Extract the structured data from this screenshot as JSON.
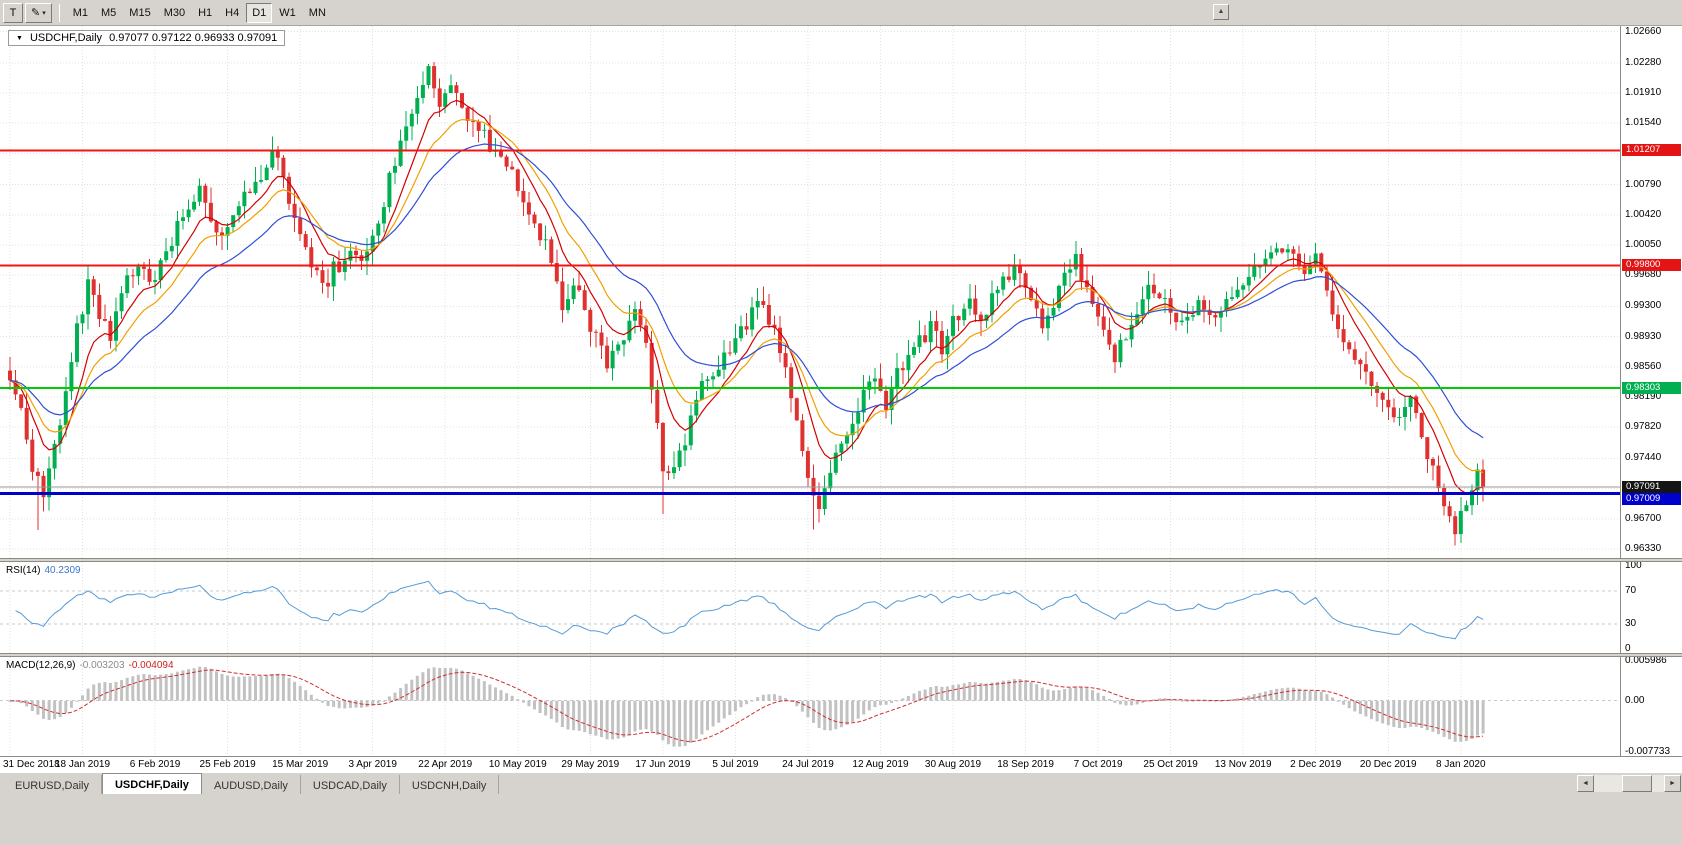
{
  "icons": {
    "collapse": "▼",
    "pencil": "✎",
    "caret_down": "▾",
    "scroll_up": "▲",
    "scroll_left": "◄",
    "scroll_right": "►"
  },
  "colors": {
    "window_bg": "#d6d3ce",
    "chart_bg": "#ffffff",
    "grid": "#e0e0e0",
    "up_candle": "#00b050",
    "down_candle": "#e03131",
    "ma_fast": "#d40000",
    "ma_mid": "#f0a000",
    "ma_slow": "#2e4fd4",
    "level_red": "#f01414",
    "level_green": "#00cc00",
    "level_blue": "#0000cc",
    "bid_line": "#9a9a9a",
    "rsi_line": "#559ad8",
    "rsi_level_dash": "#c8c8c8",
    "macd_hist": "#c2c2c2",
    "macd_signal": "#d03030",
    "badge_red": "#e41414",
    "badge_green": "#00b050",
    "badge_blue": "#0000cc",
    "badge_black": "#141414"
  },
  "toolbar": {
    "chart_type_label": "T",
    "timeframes": [
      "M1",
      "M5",
      "M15",
      "M30",
      "H1",
      "H4",
      "D1",
      "W1",
      "MN"
    ],
    "active_timeframe": "D1"
  },
  "chart": {
    "symbol": "USDCHF,Daily",
    "ohlc_text": "0.97077 0.97122 0.96933 0.97091"
  },
  "rsi": {
    "name": "RSI(14)",
    "value": "40.2309",
    "scale_labels": [
      "100",
      "70",
      "30",
      "0"
    ],
    "dashed_levels": [
      70,
      30
    ]
  },
  "macd": {
    "name": "MACD(12,26,9)",
    "value_macd": "-0.003203",
    "value_signal": "-0.004094",
    "scale_top": "0.005986",
    "scale_mid": "0.00",
    "scale_bottom": "-0.007733"
  },
  "tabs": [
    {
      "label": "EURUSD,Daily",
      "active": false
    },
    {
      "label": "USDCHF,Daily",
      "active": true
    },
    {
      "label": "AUDUSD,Daily",
      "active": false
    },
    {
      "label": "USDCAD,Daily",
      "active": false
    },
    {
      "label": "USDCNH,Daily",
      "active": false
    }
  ],
  "chart_data": {
    "type": "candlestick",
    "symbol": "USDCHF",
    "timeframe": "Daily",
    "num_candles": 265,
    "last_close": 0.97091,
    "x_label_every": 13,
    "x_labels": [
      "31 Dec 2018",
      "18 Jan 2019",
      "6 Feb 2019",
      "25 Feb 2019",
      "15 Mar 2019",
      "3 Apr 2019",
      "22 Apr 2019",
      "10 May 2019",
      "29 May 2019",
      "17 Jun 2019",
      "5 Jul 2019",
      "24 Jul 2019",
      "12 Aug 2019",
      "30 Aug 2019",
      "18 Sep 2019",
      "7 Oct 2019",
      "25 Oct 2019",
      "13 Nov 2019",
      "2 Dec 2019",
      "20 Dec 2019",
      "8 Jan 2020"
    ],
    "price_axis": {
      "min": 0.9622,
      "max": 1.0273,
      "labels": [
        "1.02660",
        "1.02280",
        "1.01910",
        "1.01540",
        "1.00790",
        "1.00420",
        "1.00050",
        "0.99680",
        "0.99300",
        "0.98930",
        "0.98560",
        "0.98190",
        "0.97820",
        "0.97440",
        "0.96700",
        "0.96330"
      ],
      "hidden_grid": [
        1.0117,
        0.9707
      ]
    },
    "levels": [
      {
        "value": 1.01207,
        "label": "1.01207",
        "color_key": "level_red",
        "badge": "badge_red",
        "width": 2
      },
      {
        "value": 0.998,
        "label": "0.99800",
        "color_key": "level_red",
        "badge": "badge_red",
        "width": 2
      },
      {
        "value": 0.98303,
        "label": "0.98303",
        "color_key": "level_green",
        "badge": "badge_green",
        "width": 2
      },
      {
        "value": 0.97091,
        "label": "0.97091",
        "color_key": "bid_line",
        "badge": "badge_black",
        "width": 1
      },
      {
        "value": 0.97009,
        "label": "0.97009",
        "color_key": "level_blue",
        "badge": "badge_blue",
        "width": 3
      }
    ],
    "moving_averages": [
      {
        "name": "ma-fast",
        "period": 8,
        "color_key": "ma_fast"
      },
      {
        "name": "ma-mid",
        "period": 14,
        "color_key": "ma_mid"
      },
      {
        "name": "ma-slow",
        "period": 26,
        "color_key": "ma_slow"
      }
    ],
    "rsi_period": 14,
    "macd_params": [
      12,
      26,
      9
    ],
    "macd_scale": {
      "max": 0.005986,
      "min": -0.007733
    },
    "clamp": {
      "high": 1.0229,
      "low": 0.9635
    },
    "price_waypoints": [
      [
        0,
        0.9848
      ],
      [
        2,
        0.98
      ],
      [
        4,
        0.9735
      ],
      [
        6,
        0.97
      ],
      [
        8,
        0.976
      ],
      [
        10,
        0.982
      ],
      [
        12,
        0.9902
      ],
      [
        14,
        0.9955
      ],
      [
        16,
        0.992
      ],
      [
        18,
        0.989
      ],
      [
        20,
        0.9945
      ],
      [
        23,
        0.9985
      ],
      [
        26,
        0.996
      ],
      [
        28,
        1.0
      ],
      [
        31,
        1.004
      ],
      [
        34,
        1.0078
      ],
      [
        36,
        1.004
      ],
      [
        38,
        1.0015
      ],
      [
        41,
        1.006
      ],
      [
        44,
        1.0075
      ],
      [
        47,
        1.0125
      ],
      [
        49,
        1.009
      ],
      [
        51,
        1.004
      ],
      [
        54,
        0.9985
      ],
      [
        56,
        0.995
      ],
      [
        58,
        0.9975
      ],
      [
        61,
        0.9992
      ],
      [
        63,
        0.9985
      ],
      [
        66,
        1.0035
      ],
      [
        69,
        1.011
      ],
      [
        72,
        1.017
      ],
      [
        75,
        1.0215
      ],
      [
        77,
        1.018
      ],
      [
        79,
        1.02
      ],
      [
        81,
        1.0165
      ],
      [
        84,
        1.0145
      ],
      [
        87,
        1.012
      ],
      [
        90,
        1.0095
      ],
      [
        93,
        1.005
      ],
      [
        96,
        1.0005
      ],
      [
        99,
        0.9935
      ],
      [
        101,
        0.9958
      ],
      [
        104,
        0.9905
      ],
      [
        107,
        0.9858
      ],
      [
        110,
        0.9895
      ],
      [
        112,
        0.993
      ],
      [
        114,
        0.988
      ],
      [
        116,
        0.979
      ],
      [
        117,
        0.9725
      ],
      [
        119,
        0.974
      ],
      [
        121,
        0.9765
      ],
      [
        124,
        0.9835
      ],
      [
        127,
        0.9862
      ],
      [
        130,
        0.9884
      ],
      [
        133,
        0.992
      ],
      [
        135,
        0.9935
      ],
      [
        137,
        0.9895
      ],
      [
        139,
        0.9855
      ],
      [
        141,
        0.98
      ],
      [
        143,
        0.9715
      ],
      [
        145,
        0.969
      ],
      [
        147,
        0.973
      ],
      [
        150,
        0.977
      ],
      [
        153,
        0.982
      ],
      [
        155,
        0.984
      ],
      [
        157,
        0.9805
      ],
      [
        159,
        0.9845
      ],
      [
        162,
        0.9875
      ],
      [
        165,
        0.9905
      ],
      [
        167,
        0.9878
      ],
      [
        169,
        0.991
      ],
      [
        172,
        0.994
      ],
      [
        174,
        0.991
      ],
      [
        177,
        0.995
      ],
      [
        180,
        0.998
      ],
      [
        183,
        0.994
      ],
      [
        185,
        0.9905
      ],
      [
        188,
        0.995
      ],
      [
        191,
        0.9985
      ],
      [
        193,
        0.9955
      ],
      [
        196,
        0.9905
      ],
      [
        198,
        0.9868
      ],
      [
        201,
        0.9915
      ],
      [
        204,
        0.9955
      ],
      [
        207,
        0.9935
      ],
      [
        210,
        0.9905
      ],
      [
        213,
        0.9928
      ],
      [
        216,
        0.9908
      ],
      [
        219,
        0.994
      ],
      [
        222,
        0.997
      ],
      [
        225,
        0.9995
      ],
      [
        228,
        1.0005
      ],
      [
        230,
        0.9985
      ],
      [
        232,
        0.9965
      ],
      [
        234,
        0.9988
      ],
      [
        236,
        0.9945
      ],
      [
        238,
        0.9905
      ],
      [
        241,
        0.987
      ],
      [
        244,
        0.9838
      ],
      [
        247,
        0.9808
      ],
      [
        249,
        0.9788
      ],
      [
        251,
        0.9815
      ],
      [
        253,
        0.9775
      ],
      [
        255,
        0.973
      ],
      [
        257,
        0.969
      ],
      [
        259,
        0.9655
      ],
      [
        261,
        0.9685
      ],
      [
        263,
        0.9725
      ],
      [
        264,
        0.97091
      ]
    ],
    "wick_extremes": [
      [
        5,
        "low",
        0.9656
      ],
      [
        47,
        "high",
        1.0138
      ],
      [
        75,
        "high",
        1.0226
      ],
      [
        117,
        "low",
        0.9676
      ],
      [
        144,
        "low",
        0.9657
      ],
      [
        259,
        "low",
        0.9637
      ]
    ]
  }
}
